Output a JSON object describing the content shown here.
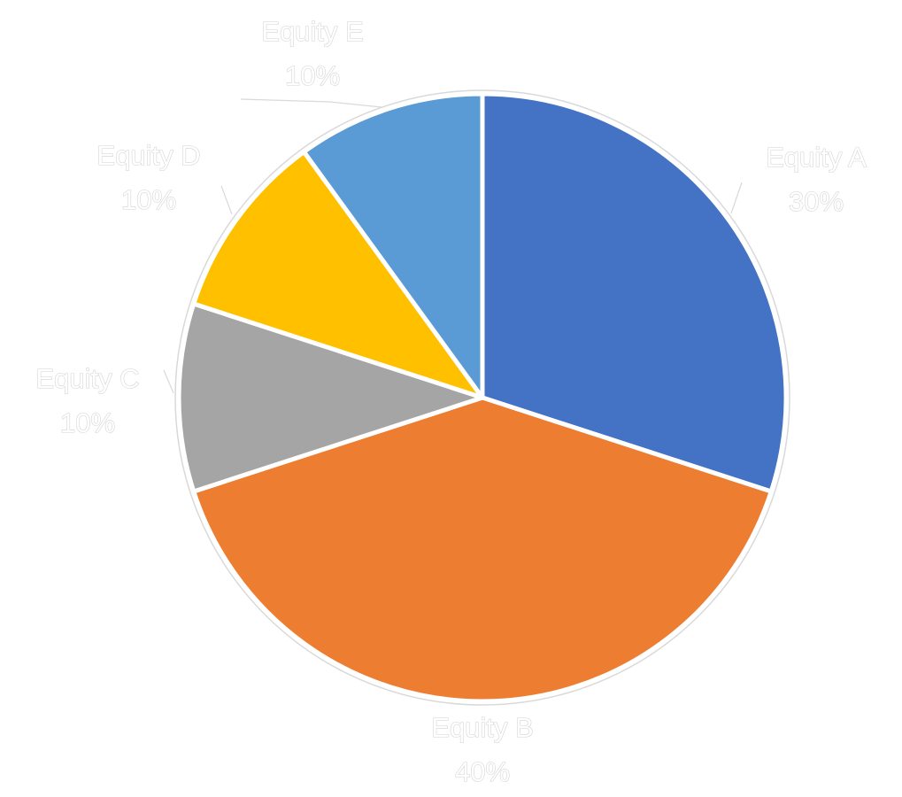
{
  "chart_data": {
    "type": "pie",
    "title": "",
    "categories": [
      "Equity A",
      "Equity B",
      "Equity C",
      "Equity D",
      "Equity E"
    ],
    "values": [
      30,
      40,
      10,
      10,
      10
    ],
    "percent_labels": [
      "30%",
      "40%",
      "10%",
      "10%",
      "10%"
    ],
    "colors": [
      "#4472C4",
      "#ED7D31",
      "#A5A5A5",
      "#FFC000",
      "#5B9BD5"
    ],
    "start_angle": "12 o'clock",
    "direction": "clockwise",
    "legend": "none",
    "data_labels": "outside with leader lines"
  }
}
